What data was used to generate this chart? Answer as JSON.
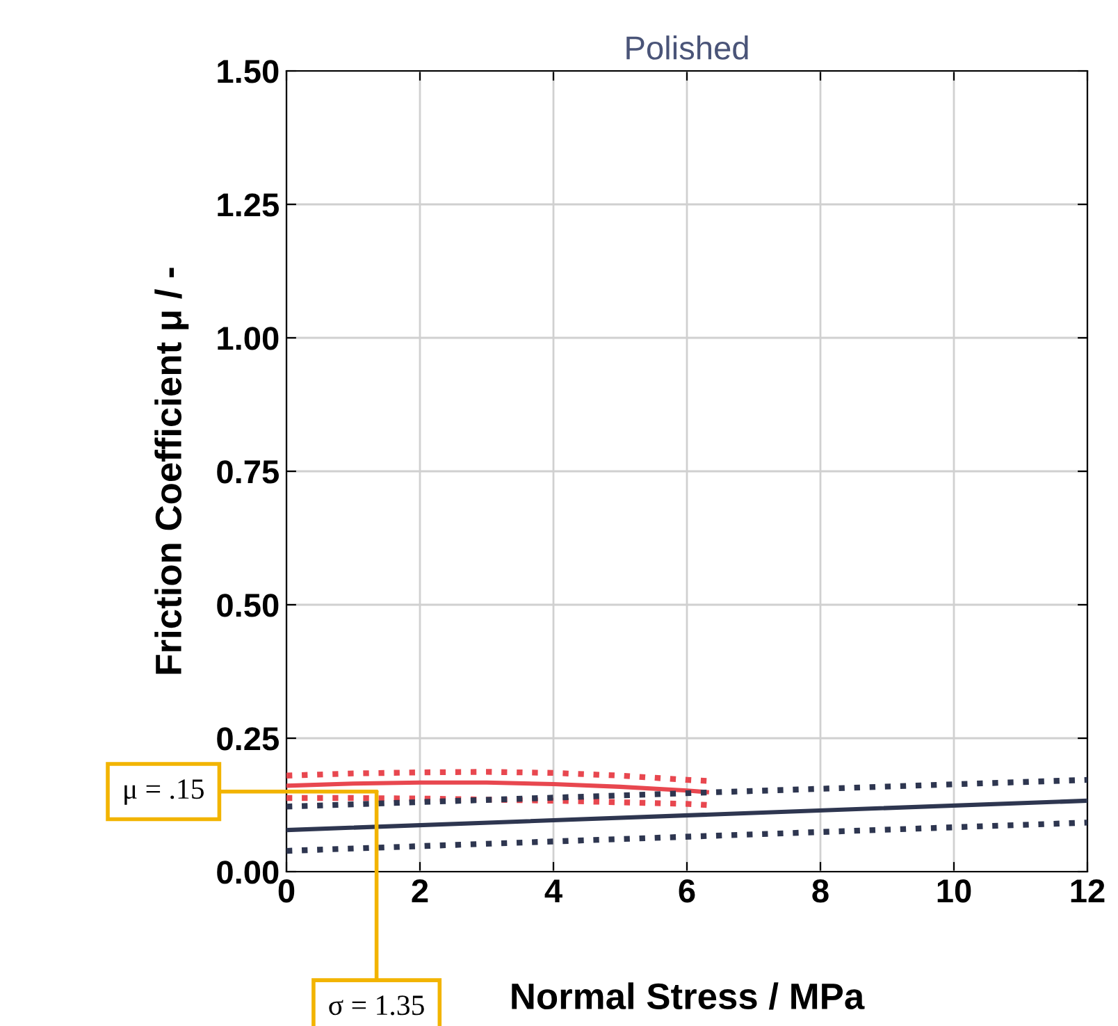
{
  "chart_data": {
    "type": "line",
    "title": "Polished",
    "xlabel": "Normal Stress / MPa",
    "ylabel": "Friction Coefficient μ / -",
    "xlim": [
      0,
      12
    ],
    "xticks": [
      0,
      2,
      4,
      6,
      8,
      10,
      12
    ],
    "ylim": [
      0,
      1.5
    ],
    "yticks": [
      {
        "value": 0,
        "label": "0.00"
      },
      {
        "value": 0.25,
        "label": "0.25"
      },
      {
        "value": 0.5,
        "label": "0.50"
      },
      {
        "value": 0.75,
        "label": "0.75"
      },
      {
        "value": 1.0,
        "label": "1.00"
      },
      {
        "value": 1.25,
        "label": "1.25"
      },
      {
        "value": 1.5,
        "label": "1.50"
      }
    ],
    "grid": true,
    "marker": "none",
    "series": [
      {
        "color": "#e8474f",
        "line_style": "solid",
        "x": [
          0,
          1,
          2,
          3,
          4,
          5,
          6,
          6.3
        ],
        "values": [
          0.161,
          0.165,
          0.167,
          0.167,
          0.164,
          0.159,
          0.152,
          0.149
        ]
      },
      {
        "color": "#e8474f",
        "line_style": "dotted",
        "x": [
          0,
          1,
          2,
          3,
          4,
          5,
          6,
          6.3
        ],
        "values": [
          0.18,
          0.184,
          0.186,
          0.187,
          0.185,
          0.18,
          0.172,
          0.17
        ]
      },
      {
        "color": "#e8474f",
        "line_style": "dotted",
        "x": [
          0,
          1,
          2,
          3,
          4,
          5,
          6,
          6.3
        ],
        "values": [
          0.138,
          0.138,
          0.137,
          0.135,
          0.133,
          0.13,
          0.127,
          0.125
        ]
      },
      {
        "color": "#2e3650",
        "line_style": "solid",
        "x": [
          0,
          12
        ],
        "values": [
          0.078,
          0.133
        ]
      },
      {
        "color": "#2e3650",
        "line_style": "dotted",
        "x": [
          0,
          12
        ],
        "values": [
          0.122,
          0.172
        ]
      },
      {
        "color": "#2e3650",
        "line_style": "dotted",
        "x": [
          0,
          12
        ],
        "values": [
          0.039,
          0.092
        ]
      }
    ],
    "annotations": [
      {
        "text": "μ = .15",
        "x": 1.35,
        "y": 0.15
      },
      {
        "text": "σ = 1.35",
        "x": 1.35,
        "y": 0.15
      }
    ]
  }
}
